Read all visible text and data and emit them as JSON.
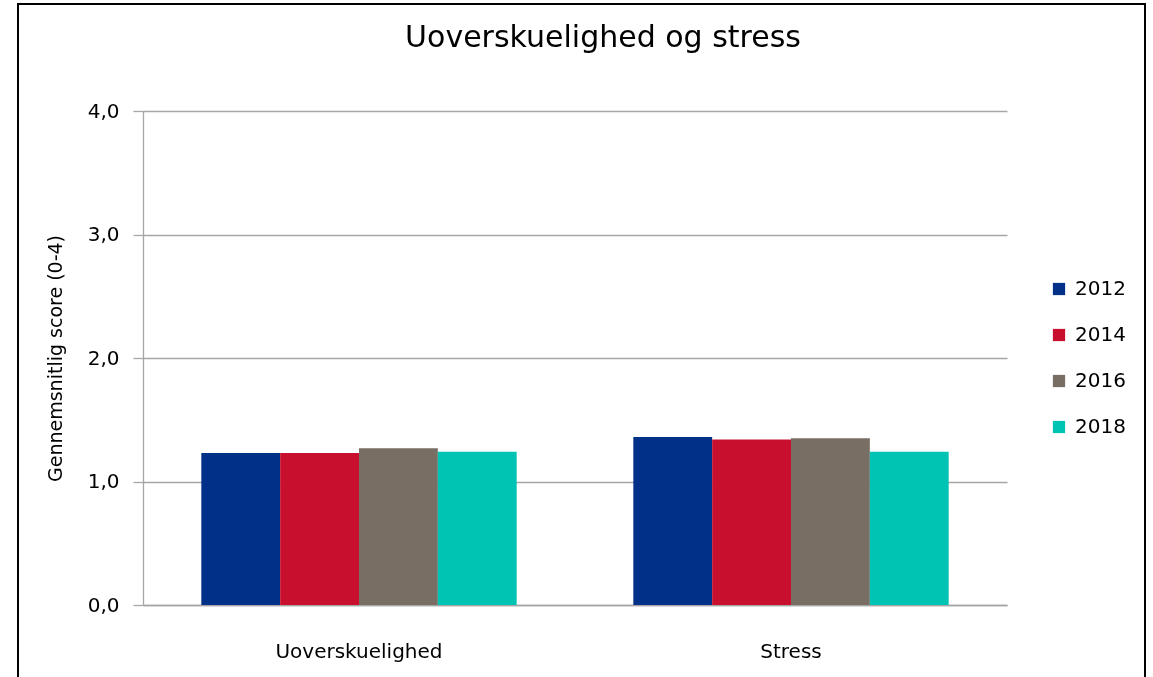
{
  "chart_data": {
    "type": "bar",
    "title": "Uoverskuelighed og stress",
    "ylabel": "Gennemsnitlig score (0-4)",
    "categories": [
      "Uoverskuelighed",
      "Stress"
    ],
    "series": [
      {
        "name": "2012",
        "color": "#003087",
        "values": [
          1.23,
          1.36
        ]
      },
      {
        "name": "2014",
        "color": "#c8102e",
        "values": [
          1.23,
          1.34
        ]
      },
      {
        "name": "2016",
        "color": "#786e64",
        "values": [
          1.27,
          1.35
        ]
      },
      {
        "name": "2018",
        "color": "#00c4b3",
        "values": [
          1.24,
          1.24
        ]
      }
    ],
    "ylim": [
      0,
      4
    ],
    "yticks": [
      {
        "value": 0,
        "label": "0,0"
      },
      {
        "value": 1,
        "label": "1,0"
      },
      {
        "value": 2,
        "label": "2,0"
      },
      {
        "value": 3,
        "label": "3,0"
      },
      {
        "value": 4,
        "label": "4,0"
      }
    ],
    "grid": "y",
    "legend": "right"
  }
}
